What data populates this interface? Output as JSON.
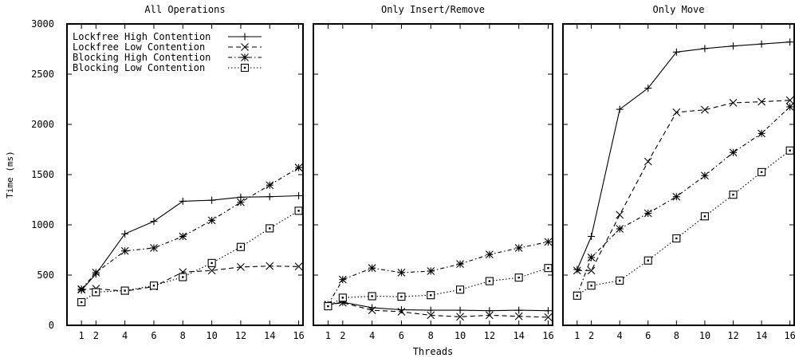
{
  "chart_data": {
    "type": "line",
    "xlabel": "Threads",
    "ylabel": "Time (ms)",
    "x": [
      1,
      2,
      4,
      6,
      8,
      10,
      12,
      14,
      16
    ],
    "xticks": [
      1,
      2,
      4,
      6,
      8,
      10,
      12,
      14,
      16
    ],
    "xlim": [
      0,
      16.3
    ],
    "ylim": [
      0,
      3000
    ],
    "yticks": [
      0,
      500,
      1000,
      1500,
      2000,
      2500,
      3000
    ],
    "legend_placement": "top-left of first panel",
    "series_styles": [
      {
        "name": "Lockfree High Contention",
        "dash": "",
        "marker": "plus"
      },
      {
        "name": "Lockfree Low Contention",
        "dash": "6,4",
        "marker": "cross"
      },
      {
        "name": "Blocking High Contention",
        "dash": "5,3,1.5,3",
        "marker": "star"
      },
      {
        "name": "Blocking Low Contention",
        "dash": "1.5,2.5",
        "marker": "box"
      }
    ],
    "panels": [
      {
        "title": "All Operations",
        "series": [
          {
            "name": "Lockfree High Contention",
            "values": [
              350,
              510,
              910,
              1035,
              1235,
              1245,
              1275,
              1280,
              1290
            ]
          },
          {
            "name": "Lockfree Low Contention",
            "values": [
              355,
              365,
              340,
              385,
              530,
              545,
              580,
              590,
              585
            ]
          },
          {
            "name": "Blocking High Contention",
            "values": [
              360,
              525,
              740,
              770,
              885,
              1045,
              1225,
              1395,
              1570
            ]
          },
          {
            "name": "Blocking Low Contention",
            "values": [
              230,
              330,
              345,
              395,
              480,
              620,
              780,
              965,
              1140
            ]
          }
        ]
      },
      {
        "title": "Only Insert/Remove",
        "series": [
          {
            "name": "Lockfree High Contention",
            "values": [
              205,
              230,
              175,
              155,
              150,
              150,
              145,
              150,
              145
            ]
          },
          {
            "name": "Lockfree Low Contention",
            "values": [
              205,
              225,
              150,
              135,
              100,
              85,
              100,
              90,
              80
            ]
          },
          {
            "name": "Blocking High Contention",
            "values": [
              205,
              455,
              570,
              525,
              540,
              610,
              705,
              770,
              830
            ]
          },
          {
            "name": "Blocking Low Contention",
            "values": [
              190,
              275,
              290,
              285,
              300,
              355,
              440,
              475,
              570
            ]
          }
        ]
      },
      {
        "title": "Only Move",
        "series": [
          {
            "name": "Lockfree High Contention",
            "values": [
              555,
              885,
              2150,
              2360,
              2720,
              2755,
              2780,
              2800,
              2820
            ]
          },
          {
            "name": "Lockfree Low Contention",
            "values": [
              545,
              545,
              1100,
              1630,
              2120,
              2145,
              2215,
              2225,
              2240
            ]
          },
          {
            "name": "Blocking High Contention",
            "values": [
              300,
              675,
              960,
              1115,
              1280,
              1490,
              1720,
              1910,
              2175
            ]
          },
          {
            "name": "Blocking Low Contention",
            "values": [
              295,
              395,
              445,
              645,
              865,
              1085,
              1300,
              1525,
              1740
            ]
          }
        ]
      }
    ]
  }
}
